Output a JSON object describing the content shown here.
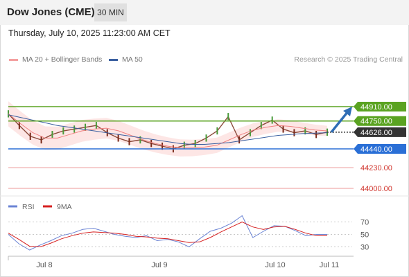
{
  "header": {
    "title": "Dow Jones (CME)",
    "interval": "30 MIN"
  },
  "timestamp": "Thursday, July 10, 2025 11:23:00 AM CET",
  "legend": {
    "bollinger": "MA 20 + Bollinger Bands",
    "ma50": "MA 50"
  },
  "credit": "Research © 2025 Trading Central",
  "colors": {
    "resistance": "#5aa321",
    "support": "#2a6fd6",
    "target": "#e46c6c",
    "current": "#333333",
    "arrow": "#2f6db5",
    "bb": "#fde2e0",
    "ma20": "#f08080",
    "ma50": "#3a5fa0",
    "rsi": "#6b84d4",
    "rsi_ma": "#d62020"
  },
  "chart_data": [
    {
      "type": "line",
      "title": "Dow Jones (CME)",
      "x_ticks": [
        "Jul 8",
        "Jul 9",
        "Jul 10",
        "Jul 11"
      ],
      "levels": [
        {
          "label": "44910.00",
          "value": 44910,
          "kind": "resistance"
        },
        {
          "label": "44750.00",
          "value": 44750,
          "kind": "resistance"
        },
        {
          "label": "44626.00",
          "value": 44626,
          "kind": "current"
        },
        {
          "label": "44440.00",
          "value": 44440,
          "kind": "support"
        },
        {
          "label": "44230.00",
          "value": 44230,
          "kind": "target"
        },
        {
          "label": "44000.00",
          "value": 44000,
          "kind": "target"
        }
      ],
      "series": [
        {
          "name": "MA 20 + Bollinger Bands",
          "values": [
            44830,
            44720,
            44620,
            44560,
            44560,
            44600,
            44640,
            44660,
            44670,
            44640,
            44590,
            44540,
            44500,
            44470,
            44450,
            44450,
            44460,
            44480,
            44540,
            44600,
            44650,
            44680,
            44700,
            44690,
            44670,
            44650,
            44640
          ]
        },
        {
          "name": "MA 50",
          "values": [
            44820,
            44790,
            44760,
            44730,
            44700,
            44680,
            44660,
            44640,
            44620,
            44600,
            44580,
            44560,
            44540,
            44520,
            44500,
            44490,
            44490,
            44500,
            44510,
            44530,
            44550,
            44570,
            44590,
            44600,
            44610,
            44615,
            44620
          ]
        }
      ],
      "price": [
        44830,
        44700,
        44580,
        44540,
        44600,
        44640,
        44660,
        44680,
        44700,
        44620,
        44560,
        44520,
        44540,
        44500,
        44470,
        44440,
        44480,
        44500,
        44560,
        44640,
        44800,
        44540,
        44620,
        44700,
        44760,
        44660,
        44620,
        44640,
        44600,
        44626
      ],
      "arrow_target": 44910
    },
    {
      "type": "line",
      "legend": [
        "RSI",
        "9MA"
      ],
      "yticks": [
        70,
        50,
        30
      ],
      "ylim": [
        15,
        85
      ],
      "series": [
        {
          "name": "RSI",
          "values": [
            50,
            35,
            25,
            33,
            40,
            48,
            52,
            58,
            60,
            55,
            50,
            47,
            45,
            48,
            40,
            42,
            38,
            30,
            43,
            55,
            60,
            68,
            80,
            45,
            55,
            64,
            63,
            56,
            48,
            50,
            50
          ]
        },
        {
          "name": "9MA",
          "values": [
            52,
            42,
            31,
            30,
            36,
            43,
            48,
            52,
            54,
            53,
            52,
            50,
            47,
            46,
            44,
            43,
            40,
            37,
            38,
            45,
            54,
            62,
            70,
            62,
            58,
            62,
            63,
            58,
            52,
            48,
            48
          ]
        }
      ]
    }
  ]
}
